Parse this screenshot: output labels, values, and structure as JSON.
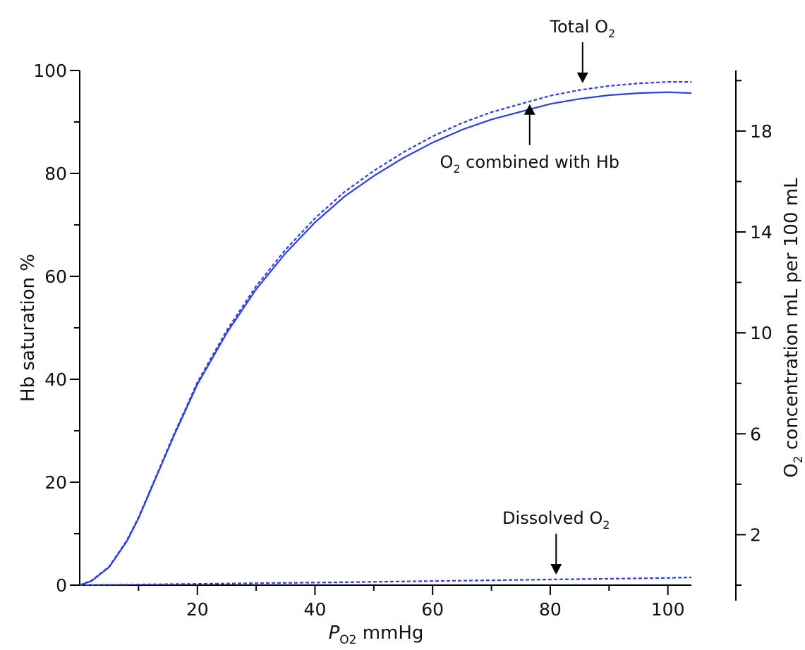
{
  "chart_data": {
    "type": "line",
    "xlabel": {
      "main": "P",
      "sub": "O2",
      "unit": "mmHg"
    },
    "ylabel_left": "Hb saturation %",
    "ylabel_right": {
      "pre": "O",
      "sub": "2",
      "post": " concentration mL per 100 mL"
    },
    "xlim": [
      0,
      104
    ],
    "ylim_left": [
      0,
      100
    ],
    "ylim_right": [
      0,
      20.4
    ],
    "x_ticks_major": [
      20,
      40,
      60,
      80,
      100
    ],
    "x_ticks_minor": [
      10,
      30,
      50,
      70,
      90
    ],
    "y_left_ticks_major": [
      0,
      20,
      40,
      60,
      80,
      100
    ],
    "y_left_ticks_minor": [
      10,
      30,
      50,
      70,
      90
    ],
    "y_right_ticks_major": [
      2,
      6,
      10,
      14,
      18
    ],
    "y_right_ticks_minor": [
      0,
      4,
      8,
      12,
      16,
      20
    ],
    "grid": false,
    "legend": "none",
    "series": [
      {
        "style": "solid",
        "color": "#2b3fe0",
        "x": [
          0,
          2,
          5,
          8,
          10,
          13,
          16,
          18,
          20,
          25,
          30,
          35,
          40,
          45,
          50,
          55,
          60,
          65,
          70,
          75,
          80,
          85,
          90,
          95,
          100,
          104
        ],
        "y": [
          0,
          0.8,
          3.5,
          8.5,
          13,
          21,
          29,
          34,
          39,
          49,
          57.5,
          64.5,
          70.5,
          75.5,
          79.5,
          83,
          86,
          88.5,
          90.5,
          92,
          93.5,
          94.5,
          95.2,
          95.6,
          95.8,
          95.6
        ]
      },
      {
        "style": "dashed",
        "color": "#2b3fe0",
        "x": [
          0,
          2,
          5,
          8,
          10,
          13,
          16,
          18,
          20,
          25,
          30,
          35,
          40,
          45,
          50,
          55,
          60,
          65,
          70,
          75,
          80,
          85,
          90,
          95,
          100,
          104
        ],
        "y": [
          0,
          0.9,
          3.6,
          8.7,
          13.2,
          21.2,
          29.3,
          34.3,
          39.4,
          49.5,
          58.1,
          65.2,
          71.3,
          76.4,
          80.5,
          84.1,
          87.2,
          89.8,
          91.9,
          93.5,
          95.1,
          96.2,
          97,
          97.5,
          97.8,
          97.8
        ]
      },
      {
        "style": "dashed",
        "color": "#2b3fe0",
        "x": [
          0,
          20,
          40,
          60,
          80,
          100,
          104
        ],
        "y": [
          0,
          0.25,
          0.5,
          0.8,
          1.1,
          1.4,
          1.5
        ]
      }
    ],
    "annotations": [
      {
        "pre": "Total O",
        "sub": "2",
        "post": "",
        "x": 85.5,
        "y": 97,
        "direction": "down"
      },
      {
        "pre": "O",
        "sub": "2",
        "post": " combined with Hb",
        "x": 76.5,
        "y": 94,
        "direction": "up"
      },
      {
        "pre": "Dissolved O",
        "sub": "2",
        "post": "",
        "x": 81,
        "y": 1.5,
        "direction": "down"
      }
    ]
  }
}
